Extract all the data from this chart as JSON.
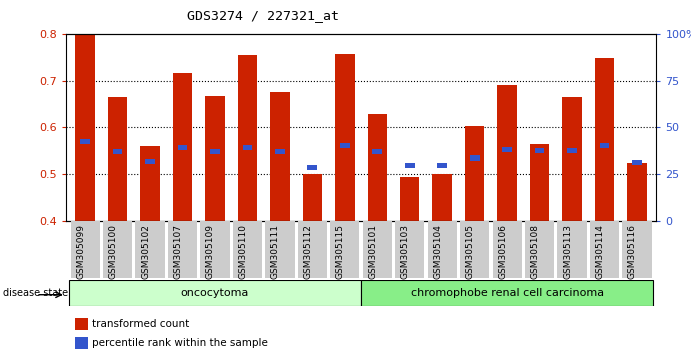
{
  "title": "GDS3274 / 227321_at",
  "samples": [
    "GSM305099",
    "GSM305100",
    "GSM305102",
    "GSM305107",
    "GSM305109",
    "GSM305110",
    "GSM305111",
    "GSM305112",
    "GSM305115",
    "GSM305101",
    "GSM305103",
    "GSM305104",
    "GSM305105",
    "GSM305106",
    "GSM305108",
    "GSM305113",
    "GSM305114",
    "GSM305116"
  ],
  "red_values": [
    0.8,
    0.665,
    0.56,
    0.715,
    0.668,
    0.755,
    0.675,
    0.5,
    0.757,
    0.628,
    0.495,
    0.5,
    0.603,
    0.69,
    0.565,
    0.665,
    0.748,
    0.525
  ],
  "blue_values": [
    0.57,
    0.548,
    0.528,
    0.558,
    0.548,
    0.558,
    0.548,
    0.515,
    0.562,
    0.548,
    0.518,
    0.518,
    0.535,
    0.553,
    0.55,
    0.55,
    0.562,
    0.525
  ],
  "group1_count": 9,
  "group2_count": 9,
  "group1_label": "oncocytoma",
  "group2_label": "chromophobe renal cell carcinoma",
  "disease_state_label": "disease state",
  "y_min": 0.4,
  "y_max": 0.8,
  "y_ticks": [
    0.4,
    0.5,
    0.6,
    0.7,
    0.8
  ],
  "right_y_ticks": [
    0,
    25,
    50,
    75,
    100
  ],
  "right_y_labels": [
    "0",
    "25",
    "50",
    "75",
    "100%"
  ],
  "bar_color": "#cc2200",
  "blue_color": "#3355cc",
  "group1_bg": "#ccffcc",
  "group2_bg": "#88ee88",
  "tick_bg": "#cccccc",
  "bar_width": 0.6,
  "fig_width": 6.91,
  "fig_height": 3.54,
  "dpi": 100
}
